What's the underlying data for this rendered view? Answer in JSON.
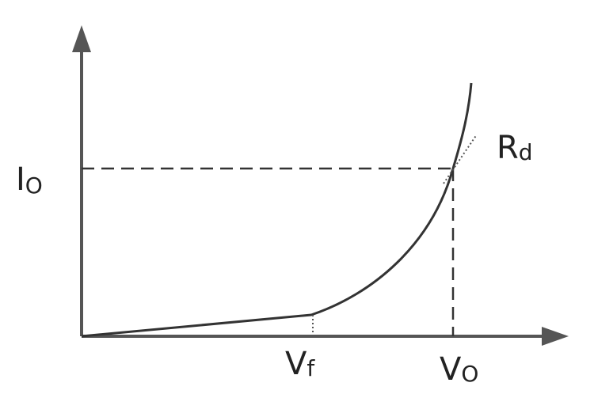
{
  "labels": {
    "current": {
      "main": "I",
      "sub": "O"
    },
    "resistance": {
      "main": "R",
      "sub": "d"
    },
    "forward_voltage": {
      "main": "V",
      "sub": "f"
    },
    "operating_voltage": {
      "main": "V",
      "sub": "O"
    }
  }
}
